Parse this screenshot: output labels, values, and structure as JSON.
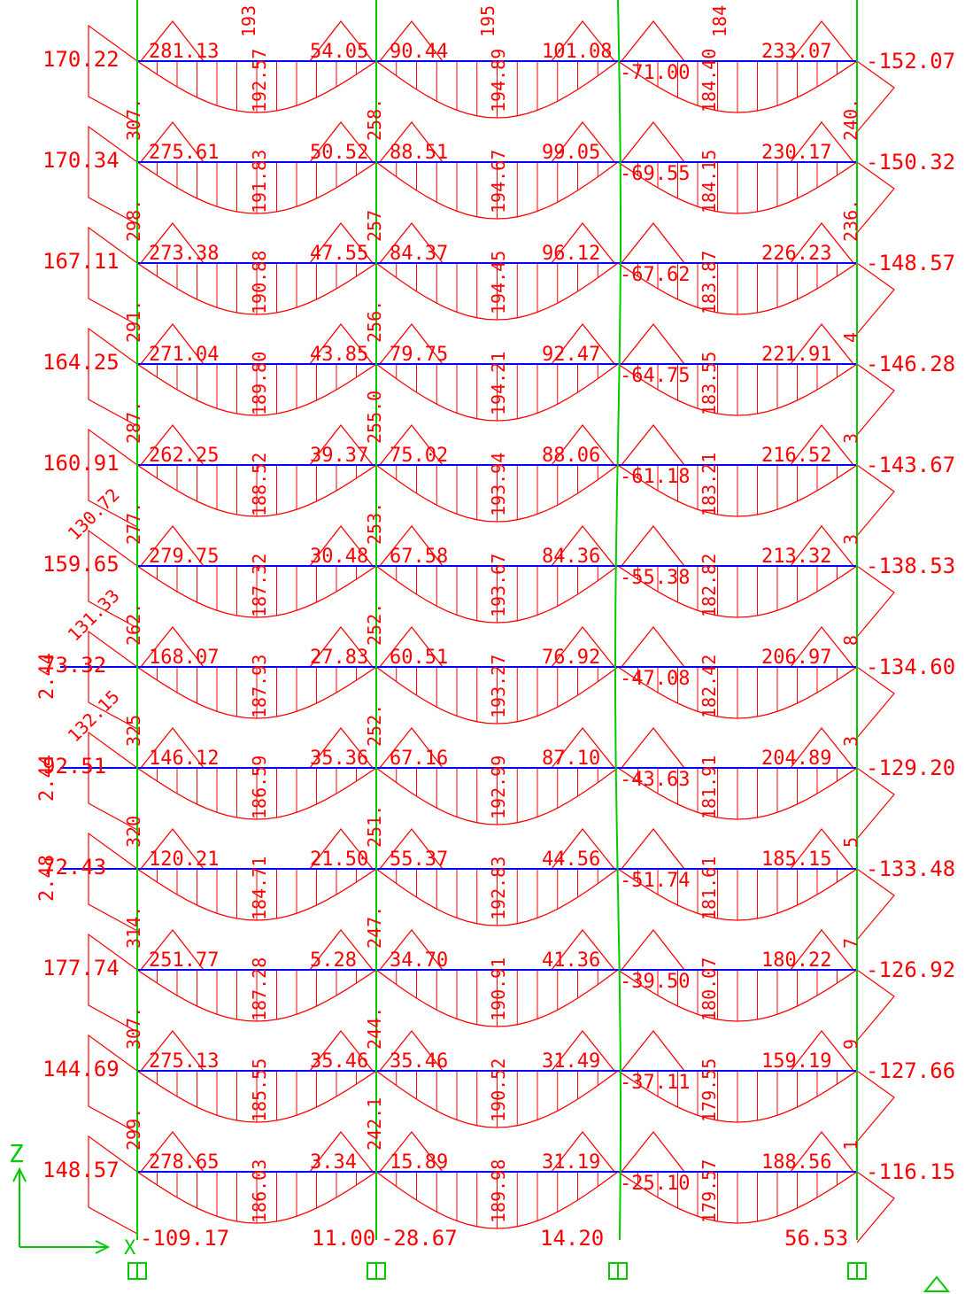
{
  "colors": {
    "beam": "#0000ff",
    "column": "#00cc00",
    "moment": "#ff0000",
    "axes": "#00cc00"
  },
  "axes": {
    "z_label": "Z",
    "x_label": "X"
  },
  "columns": 4,
  "floors": [
    {
      "left_end": "170.22",
      "left_column": "",
      "span1_left": "281.13",
      "span1_mid": "192.57",
      "span1_right": "54.05",
      "span2_left": "90.44",
      "span2_mid": "194.89",
      "span2_right": "101.08",
      "span3_left": "-71.00",
      "span3_mid": "184.40",
      "span3_right": "233.07",
      "right_end": "-152.07"
    },
    {
      "left_end": "170.34",
      "left_column": "",
      "span1_left": "275.61",
      "span1_mid": "191.83",
      "span1_right": "50.52",
      "span2_left": "88.51",
      "span2_mid": "194.67",
      "span2_right": "99.05",
      "span3_left": "-69.55",
      "span3_mid": "184.15",
      "span3_right": "230.17",
      "right_end": "-150.32"
    },
    {
      "left_end": "167.11",
      "left_column": "",
      "span1_left": "273.38",
      "span1_mid": "190.88",
      "span1_right": "47.55",
      "span2_left": "84.37",
      "span2_mid": "194.45",
      "span2_right": "96.12",
      "span3_left": "-67.62",
      "span3_mid": "183.87",
      "span3_right": "226.23",
      "right_end": "-148.57"
    },
    {
      "left_end": "164.25",
      "left_column": "",
      "span1_left": "271.04",
      "span1_mid": "189.80",
      "span1_right": "43.85",
      "span2_left": "79.75",
      "span2_mid": "194.21",
      "span2_right": "92.47",
      "span3_left": "-64.75",
      "span3_mid": "183.55",
      "span3_right": "221.91",
      "right_end": "-146.28"
    },
    {
      "left_end": "160.91",
      "left_column": "",
      "span1_left": "262.25",
      "span1_mid": "188.52",
      "span1_right": "39.37",
      "span2_left": "75.02",
      "span2_mid": "193.94",
      "span2_right": "88.06",
      "span3_left": "-61.18",
      "span3_mid": "183.21",
      "span3_right": "216.52",
      "right_end": "-143.67"
    },
    {
      "left_end": "159.65",
      "left_column": "130.72",
      "span1_left": "279.75",
      "span1_mid": "187.32",
      "span1_right": "30.48",
      "span2_left": "67.58",
      "span2_mid": "193.67",
      "span2_right": "84.36",
      "span3_left": "-55.38",
      "span3_mid": "182.82",
      "span3_right": "213.32",
      "right_end": "-138.53"
    },
    {
      "left_end": "73.32",
      "left_column": "131.33",
      "span1_left": "168.07",
      "span1_mid": "187.93",
      "span1_right": "27.83",
      "span2_left": "60.51",
      "span2_mid": "193.27",
      "span2_right": "76.92",
      "span3_left": "-47.08",
      "span3_mid": "182.42",
      "span3_right": "206.97",
      "right_end": "-134.60"
    },
    {
      "left_end": "92.51",
      "left_column": "132.15",
      "span1_left": "146.12",
      "span1_mid": "186.59",
      "span1_right": "35.36",
      "span2_left": "67.16",
      "span2_mid": "192.99",
      "span2_right": "87.10",
      "span3_left": "-43.63",
      "span3_mid": "181.91",
      "span3_right": "204.89",
      "right_end": "-129.20"
    },
    {
      "left_end": "72.43",
      "left_column": "",
      "span1_left": "120.21",
      "span1_mid": "184.71",
      "span1_right": "21.50",
      "span2_left": "55.37",
      "span2_mid": "192.83",
      "span2_right": "44.56",
      "span3_left": "-51.74",
      "span3_mid": "181.61",
      "span3_right": "185.15",
      "right_end": "-133.48"
    },
    {
      "left_end": "177.74",
      "left_column": "",
      "span1_left": "251.77",
      "span1_mid": "187.28",
      "span1_right": "5.28",
      "span2_left": "34.70",
      "span2_mid": "190.91",
      "span2_right": "41.36",
      "span3_left": "-39.50",
      "span3_mid": "180.07",
      "span3_right": "180.22",
      "right_end": "-126.92"
    },
    {
      "left_end": "144.69",
      "left_column": "",
      "span1_left": "275.13",
      "span1_mid": "185.55",
      "span1_right": "35.46",
      "span2_left": "35.46",
      "span2_mid": "190.52",
      "span2_right": "31.49",
      "span3_left": "-37.11",
      "span3_mid": "179.55",
      "span3_right": "159.19",
      "right_end": "-127.66"
    },
    {
      "left_end": "148.57",
      "left_column": "",
      "span1_left": "278.65",
      "span1_mid": "186.03",
      "span1_right": "3.34",
      "span2_left": "15.89",
      "span2_mid": "189.98",
      "span2_right": "31.19",
      "span3_left": "-25.10",
      "span3_mid": "179.57",
      "span3_right": "188.56",
      "right_end": "-116.15"
    }
  ],
  "left_offset_labels": [
    "2.44",
    "2.44",
    "2.48"
  ],
  "column_labels_left": [
    "307.",
    "298.",
    "291.",
    "287.",
    "277.",
    "262.",
    "325",
    "320",
    "314.",
    "307.",
    "299."
  ],
  "column_labels_center": [
    "258.",
    "257",
    "256.",
    "255.0",
    "253.",
    "252.",
    "252.",
    "251.",
    "247.",
    "244.",
    "242.1"
  ],
  "right_column_labels": [
    "240.",
    "236.",
    "4",
    "3",
    "3",
    "8",
    "3",
    "5",
    "7",
    "9",
    "1"
  ],
  "top_fragments": [
    "193",
    "195",
    "184"
  ],
  "bottom_labels": {
    "col1": "-109.17",
    "col2_left": "11.00",
    "col2_right": "-28.67",
    "col3": "14.20",
    "col4": "56.53"
  }
}
